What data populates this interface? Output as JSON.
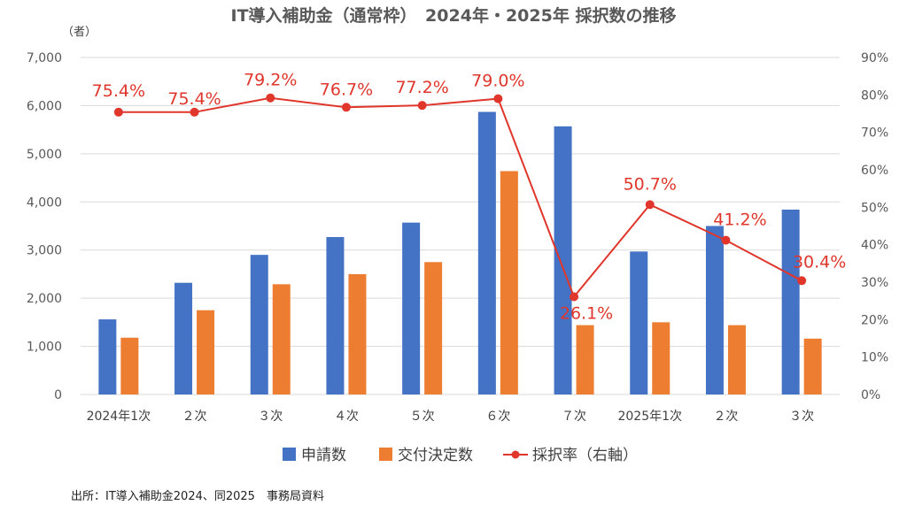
{
  "chart_data": {
    "type": "bar",
    "title": "IT導入補助金（通常枠）　2024年・2025年 採択数の推移",
    "y_unit": "（者）",
    "categories": [
      "2024年1次",
      "２次",
      "３次",
      "４次",
      "５次",
      "６次",
      "７次",
      "2025年1次",
      "２次",
      "３次"
    ],
    "ylim": [
      0,
      7000
    ],
    "y2lim": [
      0,
      90
    ],
    "y_ticks": [
      "0",
      "1,000",
      "2,000",
      "3,000",
      "4,000",
      "5,000",
      "6,000",
      "7,000"
    ],
    "y2_ticks": [
      "0%",
      "10%",
      "20%",
      "30%",
      "40%",
      "50%",
      "60%",
      "70%",
      "80%",
      "90%"
    ],
    "grid": true,
    "legend_position": "bottom",
    "series": [
      {
        "name": "申請数",
        "type": "bar",
        "axis": "left",
        "color": "#4472c4",
        "values": [
          1560,
          2320,
          2900,
          3270,
          3570,
          5870,
          5570,
          2970,
          3500,
          3840
        ]
      },
      {
        "name": "交付決定数",
        "type": "bar",
        "axis": "left",
        "color": "#ed7d31",
        "values": [
          1180,
          1750,
          2290,
          2500,
          2750,
          4640,
          1440,
          1500,
          1440,
          1160
        ]
      },
      {
        "name": "採択率（右軸）",
        "type": "line",
        "axis": "right",
        "color": "#e0362b",
        "values": [
          75.4,
          75.4,
          79.2,
          76.7,
          77.2,
          79.0,
          26.1,
          50.7,
          41.2,
          30.4
        ],
        "labels": [
          "75.4%",
          "75.4%",
          "79.2%",
          "76.7%",
          "77.2%",
          "79.0%",
          "26.1%",
          "50.7%",
          "41.2%",
          "30.4%"
        ]
      }
    ],
    "source": "出所：IT導入補助金2024、同2025　事務局資料"
  }
}
